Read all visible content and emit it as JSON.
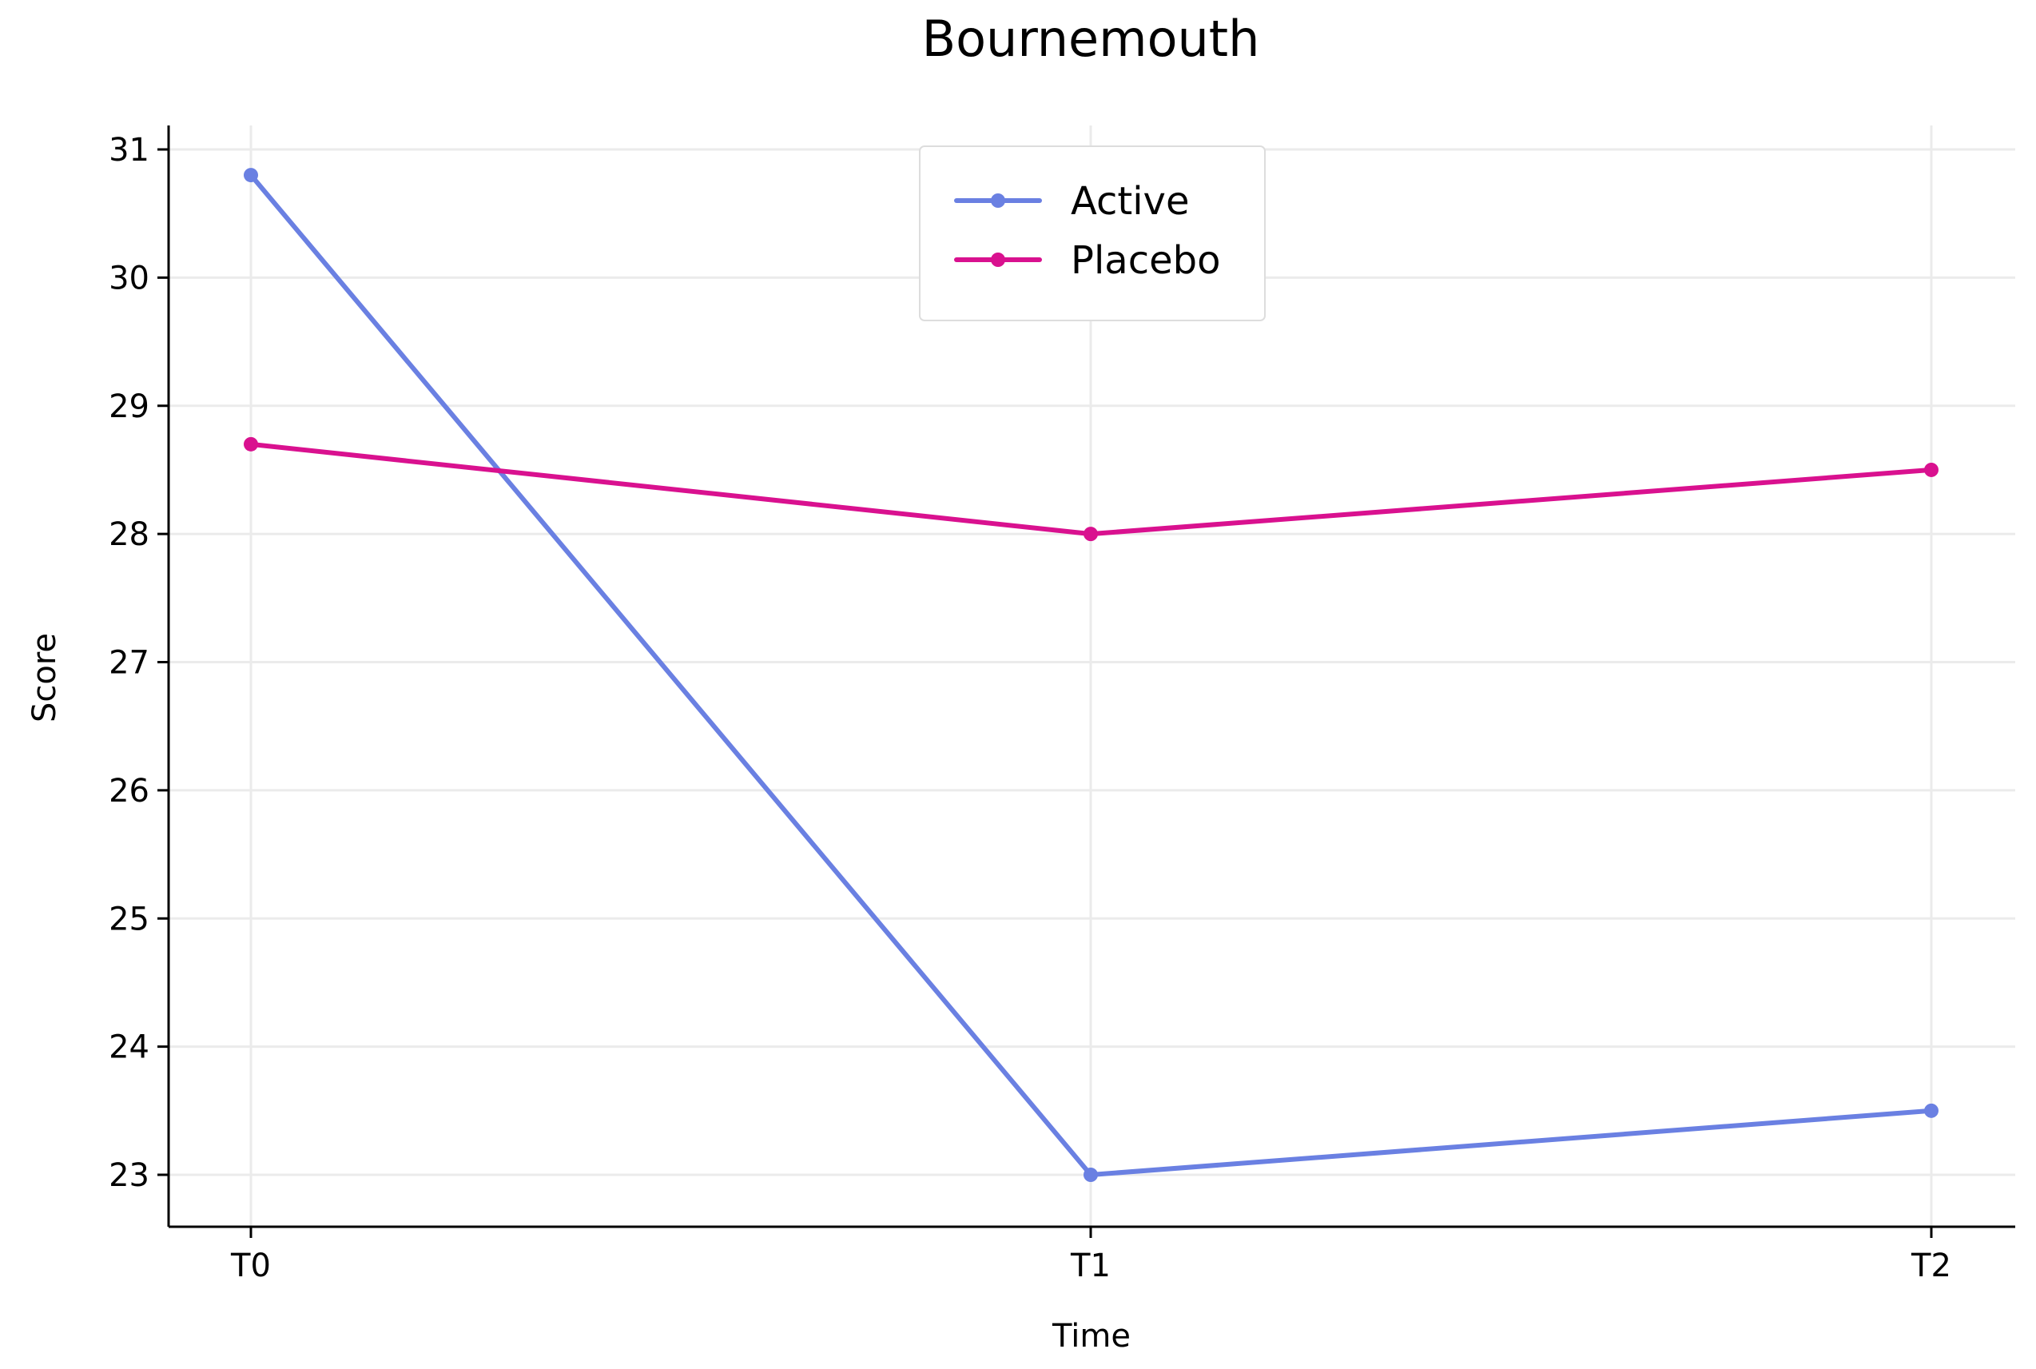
{
  "chart_data": {
    "type": "line",
    "title": "Bournemouth",
    "xlabel": "Time",
    "ylabel": "Score",
    "categories": [
      "T0",
      "T1",
      "T2"
    ],
    "yticks": [
      23,
      24,
      25,
      26,
      27,
      28,
      29,
      30,
      31
    ],
    "ylim": [
      22.6,
      31.2
    ],
    "grid": true,
    "legend_position": "top-center",
    "series": [
      {
        "name": "Active",
        "values": [
          30.8,
          23.0,
          23.5
        ],
        "color": "#6a80e2"
      },
      {
        "name": "Placebo",
        "values": [
          28.7,
          28.0,
          28.5
        ],
        "color": "#d9118f"
      }
    ]
  }
}
